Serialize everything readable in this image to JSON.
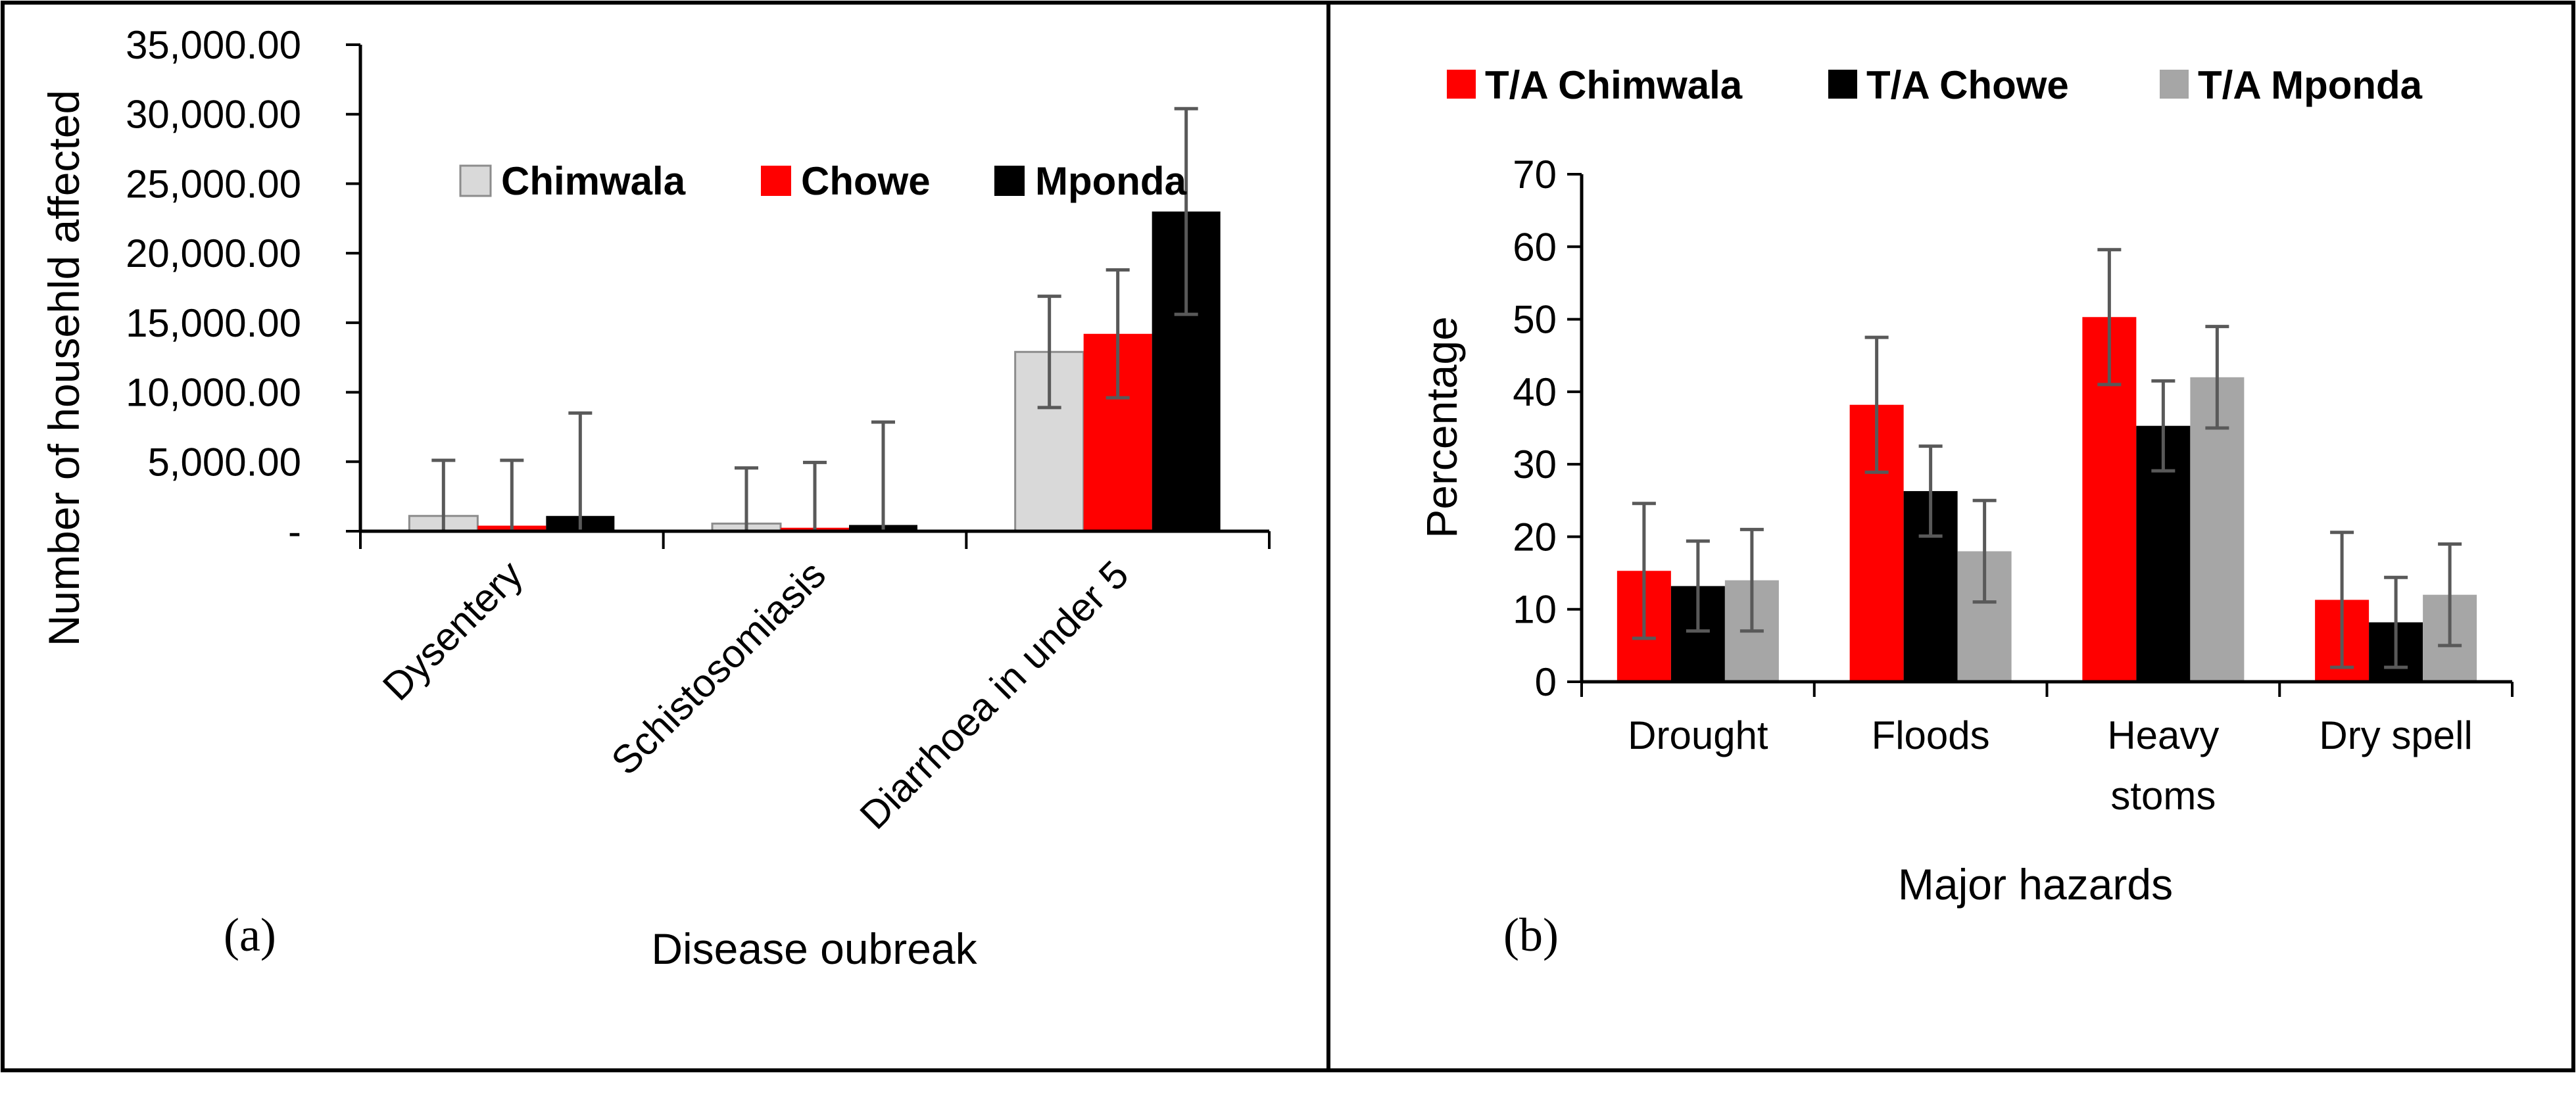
{
  "colors": {
    "chimwala_a": "#d9d9d9",
    "chowe_a": "#ff0000",
    "mponda_a": "#000000",
    "chimwala_b": "#ff0000",
    "chowe_b": "#000000",
    "mponda_b": "#a6a6a6",
    "error_bar": "#595959",
    "axis": "#000000"
  },
  "chart_data": [
    {
      "panel": "(a)",
      "type": "bar",
      "title": "",
      "xlabel": "Disease oubreak",
      "ylabel": "Number of househld affected",
      "ylim": [
        0,
        35000
      ],
      "yticks": [
        "-",
        "5,000.00",
        "10,000.00",
        "15,000.00",
        "20,000.00",
        "25,000.00",
        "30,000.00",
        "35,000.00"
      ],
      "categories": [
        "Dysentery",
        "Schistosomiasis",
        "Diarrhoea in under 5"
      ],
      "series": [
        {
          "name": "Chimwala",
          "values": [
            1100,
            550,
            12900
          ],
          "errors": [
            4000,
            4000,
            4000
          ]
        },
        {
          "name": "Chowe",
          "values": [
            400,
            250,
            14200
          ],
          "errors": [
            4700,
            4700,
            4600
          ]
        },
        {
          "name": "Mponda",
          "values": [
            1100,
            450,
            23000
          ],
          "errors": [
            7400,
            7400,
            7400
          ]
        }
      ],
      "legend": [
        "Chimwala",
        "Chowe",
        "Mponda"
      ],
      "legend_position": "top-right"
    },
    {
      "panel": "(b)",
      "type": "bar",
      "title": "",
      "xlabel": "Major hazards",
      "ylabel": "Percentage",
      "ylim": [
        0,
        70
      ],
      "yticks": [
        "0",
        "10",
        "20",
        "30",
        "40",
        "50",
        "60",
        "70"
      ],
      "categories": [
        "Drought",
        "Floods",
        "Heavy stoms",
        "Dry spell"
      ],
      "category_lines": [
        [
          "Drought"
        ],
        [
          "Floods"
        ],
        [
          "Heavy",
          "stoms"
        ],
        [
          "Dry spell"
        ]
      ],
      "series": [
        {
          "name": "T/A Chimwala",
          "values": [
            15.3,
            38.2,
            50.3,
            11.3
          ],
          "errors": [
            9.3,
            9.3,
            9.3,
            9.3
          ]
        },
        {
          "name": "T/A Chowe",
          "values": [
            13.2,
            26.3,
            35.3,
            8.2
          ],
          "errors": [
            6.2,
            6.2,
            6.2,
            6.2
          ]
        },
        {
          "name": "T/A Mponda",
          "values": [
            14.0,
            18.0,
            42.0,
            12.0
          ],
          "errors": [
            7.0,
            7.0,
            7.0,
            7.0
          ]
        }
      ],
      "legend": [
        "T/A Chimwala",
        "T/A Chowe",
        "T/A Mponda"
      ],
      "legend_position": "top"
    }
  ]
}
